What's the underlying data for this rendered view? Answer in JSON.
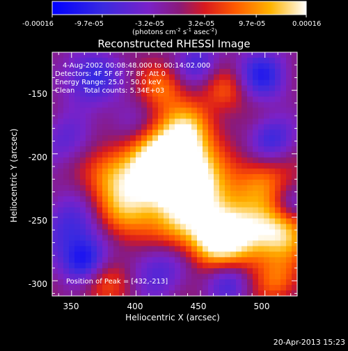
{
  "colorbar": {
    "tick_labels": [
      "-0.00016",
      "-9.7e-05",
      "-3.2e-05",
      "3.2e-05",
      "9.7e-05",
      "0.00016"
    ],
    "min": -0.00016,
    "max": 0.00016,
    "units_parts": {
      "prefix": "(photons cm",
      "exp1": "-2",
      "mid1": " s",
      "exp2": "-1",
      "mid2": " asec",
      "exp3": "-2",
      "suffix": ")"
    }
  },
  "chart_data": {
    "type": "heatmap",
    "title": "Reconstructed RHESSI Image",
    "xlabel": "Heliocentric X (arcsec)",
    "ylabel": "Heliocentric Y (arcsec)",
    "xlim": [
      335,
      525
    ],
    "ylim": [
      -312,
      -120
    ],
    "xticks": [
      350,
      400,
      450,
      500
    ],
    "yticks": [
      -150,
      -200,
      -250,
      -300
    ],
    "colormap": "hot-blue diverging (blue-purple-red-orange-yellow-white)",
    "peak": [
      432,
      -213
    ],
    "blobs": [
      {
        "x": 432,
        "y": -213,
        "v": 1.0,
        "s": 18
      },
      {
        "x": 418,
        "y": -205,
        "v": 0.8,
        "s": 22
      },
      {
        "x": 452,
        "y": -238,
        "v": 0.75,
        "s": 20
      },
      {
        "x": 478,
        "y": -265,
        "v": 0.85,
        "s": 18
      },
      {
        "x": 512,
        "y": -262,
        "v": 0.8,
        "s": 16
      },
      {
        "x": 395,
        "y": -242,
        "v": 0.7,
        "s": 18
      },
      {
        "x": 440,
        "y": -180,
        "v": 0.55,
        "s": 15
      },
      {
        "x": 420,
        "y": -148,
        "v": 0.45,
        "s": 12
      },
      {
        "x": 470,
        "y": -150,
        "v": 0.4,
        "s": 12
      },
      {
        "x": 380,
        "y": -215,
        "v": 0.45,
        "s": 14
      },
      {
        "x": 458,
        "y": -270,
        "v": 0.5,
        "s": 14
      },
      {
        "x": 375,
        "y": -298,
        "v": 0.4,
        "s": 14
      },
      {
        "x": 498,
        "y": -222,
        "v": 0.5,
        "s": 14
      },
      {
        "x": 510,
        "y": -300,
        "v": 0.45,
        "s": 12
      },
      {
        "x": 350,
        "y": -260,
        "v": -0.5,
        "s": 18
      },
      {
        "x": 365,
        "y": -140,
        "v": -0.6,
        "s": 15
      },
      {
        "x": 360,
        "y": -285,
        "v": -0.75,
        "s": 12
      },
      {
        "x": 498,
        "y": -138,
        "v": -0.65,
        "s": 14
      },
      {
        "x": 418,
        "y": -290,
        "v": -0.45,
        "s": 16
      },
      {
        "x": 472,
        "y": -300,
        "v": -0.5,
        "s": 12
      },
      {
        "x": 505,
        "y": -188,
        "v": -0.55,
        "s": 12
      },
      {
        "x": 448,
        "y": -128,
        "v": -0.45,
        "s": 12
      },
      {
        "x": 395,
        "y": -178,
        "v": -0.35,
        "s": 14
      },
      {
        "x": 520,
        "y": -240,
        "v": -0.35,
        "s": 10
      },
      {
        "x": 345,
        "y": -190,
        "v": -0.35,
        "s": 14
      },
      {
        "x": 430,
        "y": -260,
        "v": 0.35,
        "s": 14
      }
    ]
  },
  "annotations": {
    "time": "4-Aug-2002 00:08:48.000 to 00:14:02.000",
    "detectors": "Detectors: 4F 5F 6F 7F 8F, Att 0",
    "energy": "Energy Range: 25.0 - 50.0 keV",
    "clean": "Clean    Total counts: 5.34E+03",
    "peak": "Position of Peak = [432,-213]"
  },
  "timestamp": "20-Apr-2013 15:23"
}
